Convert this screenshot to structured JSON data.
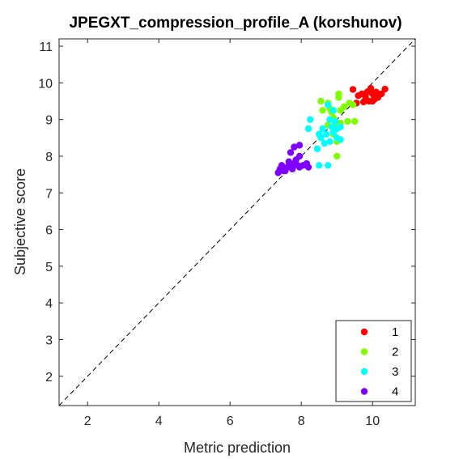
{
  "chart_data": {
    "type": "scatter",
    "title": "JPEGXT_compression_profile_A (korshunov)",
    "xlabel": "Metric prediction",
    "ylabel": "Subjective score",
    "xlim": [
      1.2,
      11.2
    ],
    "ylim": [
      1.2,
      11.2
    ],
    "xticks": [
      2,
      4,
      6,
      8,
      10
    ],
    "yticks": [
      2,
      3,
      4,
      5,
      6,
      7,
      8,
      9,
      10,
      11
    ],
    "grid": false,
    "legend_position": "bottom-right",
    "reference_line": "y = x (dashed)",
    "series": [
      {
        "name": "1",
        "color": "#ff0000",
        "points": [
          [
            9.45,
            9.82
          ],
          [
            9.6,
            9.65
          ],
          [
            9.7,
            9.7
          ],
          [
            9.85,
            9.75
          ],
          [
            9.95,
            9.85
          ],
          [
            10.0,
            9.7
          ],
          [
            10.05,
            9.55
          ],
          [
            10.1,
            9.75
          ],
          [
            10.15,
            9.6
          ],
          [
            10.2,
            9.68
          ],
          [
            10.25,
            9.7
          ],
          [
            10.35,
            9.83
          ],
          [
            9.75,
            9.48
          ],
          [
            9.9,
            9.5
          ],
          [
            10.0,
            9.5
          ],
          [
            10.05,
            9.6
          ],
          [
            9.55,
            9.45
          ],
          [
            9.8,
            9.62
          ]
        ]
      },
      {
        "name": "2",
        "color": "#80ff00",
        "points": [
          [
            8.55,
            9.5
          ],
          [
            8.75,
            9.45
          ],
          [
            8.8,
            9.3
          ],
          [
            8.6,
            9.25
          ],
          [
            9.05,
            9.7
          ],
          [
            9.05,
            9.6
          ],
          [
            9.2,
            9.35
          ],
          [
            9.35,
            9.45
          ],
          [
            9.45,
            9.4
          ],
          [
            8.9,
            9.05
          ],
          [
            8.85,
            9.2
          ],
          [
            9.0,
            8.85
          ],
          [
            9.1,
            8.9
          ],
          [
            9.3,
            8.95
          ],
          [
            9.5,
            8.95
          ],
          [
            8.9,
            8.6
          ],
          [
            9.0,
            8.4
          ],
          [
            9.0,
            8.0
          ],
          [
            8.75,
            8.85
          ],
          [
            9.1,
            9.25
          ]
        ]
      },
      {
        "name": "3",
        "color": "#00ffff",
        "points": [
          [
            8.75,
            9.4
          ],
          [
            8.9,
            9.25
          ],
          [
            8.8,
            9.0
          ],
          [
            8.85,
            8.8
          ],
          [
            8.6,
            8.75
          ],
          [
            8.7,
            8.6
          ],
          [
            8.9,
            8.65
          ],
          [
            9.0,
            8.5
          ],
          [
            9.1,
            8.45
          ],
          [
            8.55,
            8.5
          ],
          [
            8.65,
            8.35
          ],
          [
            8.5,
            8.6
          ],
          [
            8.8,
            8.4
          ],
          [
            8.2,
            8.75
          ],
          [
            8.25,
            9.0
          ],
          [
            8.45,
            8.2
          ],
          [
            8.75,
            7.75
          ],
          [
            8.5,
            7.75
          ],
          [
            9.1,
            8.8
          ],
          [
            9.0,
            8.75
          ],
          [
            8.95,
            8.95
          ]
        ]
      },
      {
        "name": "4",
        "color": "#8000ff",
        "points": [
          [
            7.35,
            7.55
          ],
          [
            7.4,
            7.65
          ],
          [
            7.45,
            7.75
          ],
          [
            7.5,
            7.6
          ],
          [
            7.6,
            7.7
          ],
          [
            7.7,
            7.75
          ],
          [
            7.75,
            7.65
          ],
          [
            7.8,
            7.8
          ],
          [
            7.85,
            7.9
          ],
          [
            7.9,
            7.75
          ],
          [
            7.95,
            7.7
          ],
          [
            7.7,
            8.1
          ],
          [
            7.8,
            8.25
          ],
          [
            7.95,
            8.3
          ],
          [
            7.95,
            8.0
          ],
          [
            8.05,
            7.75
          ],
          [
            8.15,
            7.8
          ],
          [
            8.2,
            7.7
          ],
          [
            7.65,
            7.85
          ],
          [
            7.55,
            7.6
          ]
        ]
      }
    ]
  }
}
